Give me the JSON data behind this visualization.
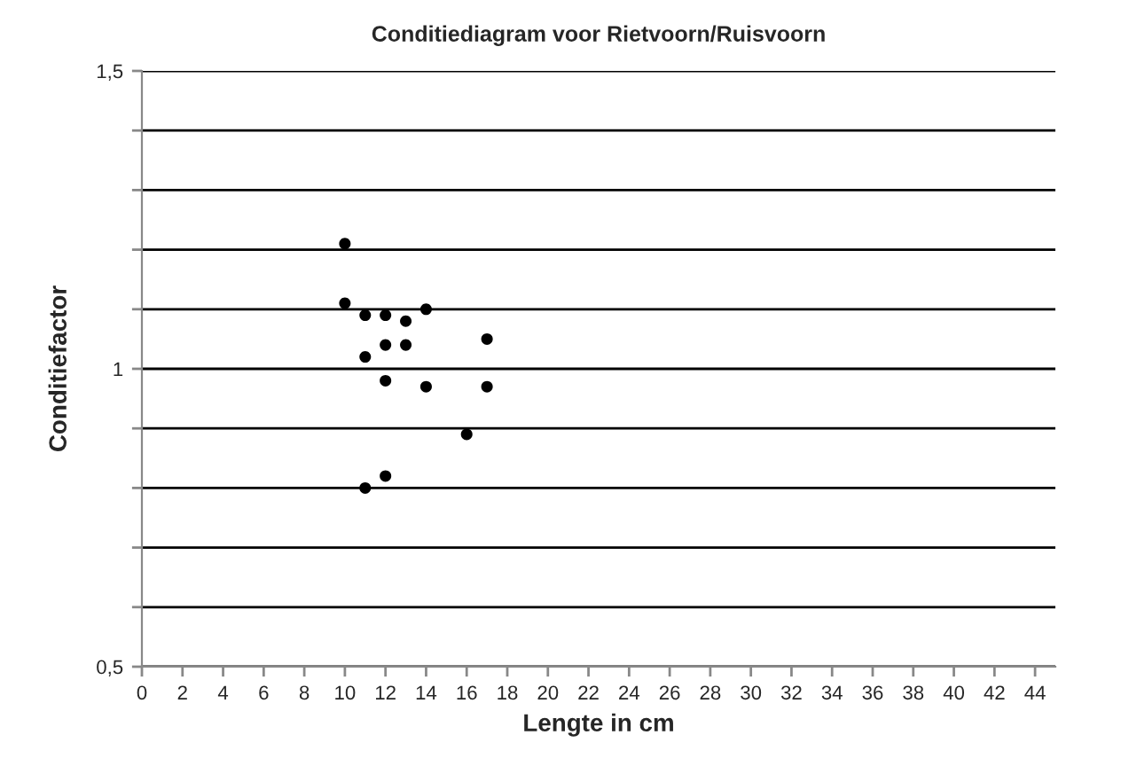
{
  "chart_data": {
    "type": "scatter",
    "title": "Conditiediagram voor Rietvoorn/Ruisvoorn",
    "xlabel": "Lengte in cm",
    "ylabel": "Conditiefactor",
    "x": [
      10,
      10,
      11,
      12,
      13,
      14,
      17,
      12,
      13,
      11,
      12,
      14,
      17,
      16,
      12,
      11
    ],
    "series": [
      {
        "color": "#000000",
        "values": [
          1.21,
          1.11,
          1.09,
          1.09,
          1.08,
          1.1,
          1.05,
          1.04,
          1.04,
          1.02,
          0.98,
          0.97,
          0.97,
          0.89,
          0.82,
          0.8
        ]
      }
    ],
    "xlim": [
      0,
      45
    ],
    "xticks": [
      0,
      2,
      4,
      6,
      8,
      10,
      12,
      14,
      16,
      18,
      20,
      22,
      24,
      26,
      28,
      30,
      32,
      34,
      36,
      38,
      40,
      42,
      44
    ],
    "ylim": [
      0.5,
      1.5
    ],
    "yticks": [
      {
        "value": 0.5,
        "label": "0,5"
      },
      {
        "value": 0.6,
        "label": null
      },
      {
        "value": 0.7,
        "label": null
      },
      {
        "value": 0.8,
        "label": null
      },
      {
        "value": 0.9,
        "label": null
      },
      {
        "value": 1,
        "label": "1"
      },
      {
        "value": 1.1,
        "label": null
      },
      {
        "value": 1.2,
        "label": null
      },
      {
        "value": 1.3,
        "label": null
      },
      {
        "value": 1.4,
        "label": null
      },
      {
        "value": 1.5,
        "label": "1,5"
      }
    ],
    "grid": "y",
    "marker": "circle",
    "legend": false
  }
}
